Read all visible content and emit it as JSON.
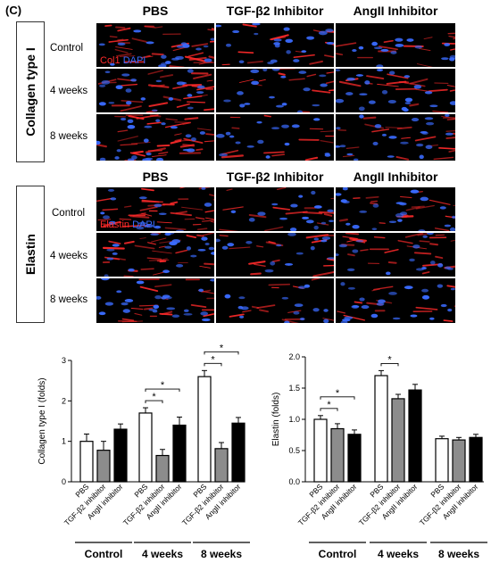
{
  "panel_label": "(C)",
  "columns": [
    "PBS",
    "TGF-β2 Inhibitor",
    "AngII Inhibitor"
  ],
  "sections": [
    {
      "title": "Collagen type I",
      "rows": [
        "Control",
        "4 weeks",
        "8 weeks"
      ],
      "stain_legend": {
        "marker": "Col1",
        "counter": "DAPI"
      },
      "red_density": [
        [
          0.55,
          0.22,
          0.25
        ],
        [
          0.45,
          0.2,
          0.3
        ],
        [
          0.6,
          0.22,
          0.35
        ]
      ]
    },
    {
      "title": "Elastin",
      "rows": [
        "Control",
        "4 weeks",
        "8 weeks"
      ],
      "stain_legend": {
        "marker": "Elastin",
        "counter": "DAPI"
      },
      "red_density": [
        [
          0.65,
          0.25,
          0.3
        ],
        [
          0.5,
          0.25,
          0.45
        ],
        [
          0.35,
          0.22,
          0.22
        ]
      ]
    }
  ],
  "colors": {
    "marker_red": "#ff2a2a",
    "dapi_blue": "#3a6bff",
    "bar_pbs": "#ffffff",
    "bar_tgf": "#8c8c8c",
    "bar_ang": "#000000"
  },
  "chart_data": [
    {
      "type": "bar",
      "ylabel": "Collagen type I (folds)",
      "ylim": [
        0,
        3
      ],
      "yticks": [
        "0",
        "1",
        "2",
        "3"
      ],
      "group_labels": [
        "Control",
        "4 weeks",
        "8 weeks"
      ],
      "bar_labels": [
        "PBS",
        "TGF-β2 inhibitor",
        "AngII inhibitor"
      ],
      "values": [
        [
          1.0,
          0.78,
          1.3
        ],
        [
          1.7,
          0.65,
          1.4
        ],
        [
          2.6,
          0.82,
          1.45
        ]
      ],
      "errors": [
        [
          0.18,
          0.22,
          0.13
        ],
        [
          0.13,
          0.15,
          0.2
        ],
        [
          0.15,
          0.15,
          0.14
        ]
      ],
      "significance": [
        {
          "group": 1,
          "from": 0,
          "to": 1,
          "level": 0,
          "label": "*"
        },
        {
          "group": 1,
          "from": 0,
          "to": 2,
          "level": 1,
          "label": "*"
        },
        {
          "group": 2,
          "from": 0,
          "to": 1,
          "level": 0,
          "label": "*"
        },
        {
          "group": 2,
          "from": 0,
          "to": 2,
          "level": 1,
          "label": "*"
        }
      ]
    },
    {
      "type": "bar",
      "ylabel": "Elastin (folds)",
      "ylim": [
        0,
        2.0
      ],
      "yticks": [
        "0.0",
        "0.5",
        "1.0",
        "1.5",
        "2.0"
      ],
      "group_labels": [
        "Control",
        "4 weeks",
        "8 weeks"
      ],
      "bar_labels": [
        "PBS",
        "TGF-β2 inhibitor",
        "AngII inhibitor"
      ],
      "values": [
        [
          1.0,
          0.85,
          0.76
        ],
        [
          1.7,
          1.33,
          1.47
        ],
        [
          0.69,
          0.67,
          0.71
        ]
      ],
      "errors": [
        [
          0.06,
          0.08,
          0.07
        ],
        [
          0.08,
          0.07,
          0.09
        ],
        [
          0.04,
          0.04,
          0.05
        ]
      ],
      "significance": [
        {
          "group": 0,
          "from": 0,
          "to": 1,
          "level": 0,
          "label": "*"
        },
        {
          "group": 0,
          "from": 0,
          "to": 2,
          "level": 1,
          "label": "*"
        },
        {
          "group": 1,
          "from": 0,
          "to": 1,
          "level": 0,
          "label": "*"
        }
      ]
    }
  ]
}
